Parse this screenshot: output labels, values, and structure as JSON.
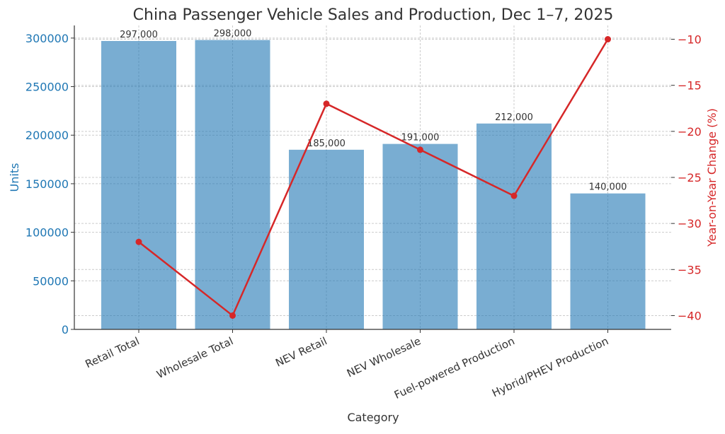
{
  "chart_data": {
    "type": "bar+line",
    "title": "China Passenger Vehicle Sales and Production, Dec 1–7, 2025",
    "xlabel": "Category",
    "ylabel": "Units",
    "y2label": "Year-on-Year Change (%)",
    "categories": [
      "Retail Total",
      "Wholesale Total",
      "NEV Retail",
      "NEV Wholesale",
      "Fuel-powered Production",
      "Hybrid/PHEV Production"
    ],
    "bars": {
      "values": [
        297000,
        298000,
        185000,
        191000,
        212000,
        140000
      ],
      "labels": [
        "297,000",
        "298,000",
        "185,000",
        "191,000",
        "212,000",
        "140,000"
      ],
      "color": "#1f77b4"
    },
    "line": {
      "values": [
        -32,
        -40,
        -17,
        -22,
        -27,
        -10
      ],
      "color": "#d62728"
    },
    "ylim": [
      0,
      313000
    ],
    "y2lim": [
      -41.5,
      -8.5
    ],
    "yticks": [
      0,
      50000,
      100000,
      150000,
      200000,
      250000,
      300000
    ],
    "y2ticks": [
      -10,
      -15,
      -20,
      -25,
      -30,
      -35,
      -40
    ],
    "y_axis_color": "#1f77b4",
    "y2_axis_color": "#d62728",
    "grid": true
  }
}
